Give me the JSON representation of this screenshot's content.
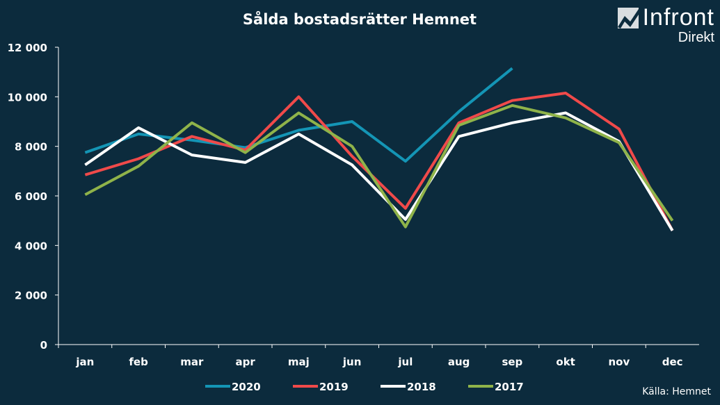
{
  "logo": {
    "brand": "Infront",
    "sub": "Direkt"
  },
  "source": "Källa:  Hemnet",
  "chart_data": {
    "type": "line",
    "title": "Sålda bostadsrätter Hemnet",
    "categories": [
      "jan",
      "feb",
      "mar",
      "apr",
      "maj",
      "jun",
      "jul",
      "aug",
      "sep",
      "okt",
      "nov",
      "dec"
    ],
    "ylim": [
      0,
      12000
    ],
    "yticks": [
      0,
      2000,
      4000,
      6000,
      8000,
      10000,
      12000
    ],
    "ytick_labels": [
      "0",
      "2 000",
      "4 000",
      "6 000",
      "8 000",
      "10 000",
      "12 000"
    ],
    "legend_position": "bottom",
    "series": [
      {
        "name": "2020",
        "color": "#1495b5",
        "values": [
          7750,
          8500,
          8250,
          7950,
          8650,
          9000,
          7400,
          9400,
          11150,
          null,
          null,
          null
        ]
      },
      {
        "name": "2019",
        "color": "#f04a4a",
        "values": [
          6850,
          7500,
          8400,
          7850,
          10000,
          7600,
          5500,
          8950,
          9850,
          10150,
          8700,
          4600
        ]
      },
      {
        "name": "2018",
        "color": "#ffffff",
        "values": [
          7250,
          8750,
          7650,
          7350,
          8500,
          7250,
          5050,
          8400,
          8950,
          9350,
          8200,
          4600
        ]
      },
      {
        "name": "2017",
        "color": "#8fb34a",
        "values": [
          6050,
          7200,
          8950,
          7750,
          9350,
          8000,
          4750,
          8850,
          9650,
          9150,
          8150,
          5000
        ]
      }
    ]
  }
}
